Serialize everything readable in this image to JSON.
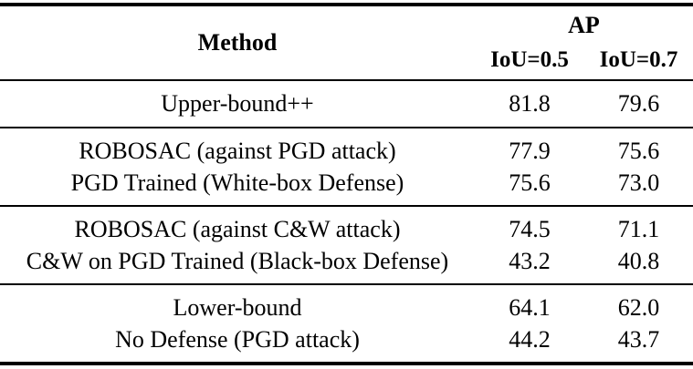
{
  "table": {
    "header": {
      "method_label": "Method",
      "ap_label": "AP",
      "iou_05_label": "IoU=0.5",
      "iou_07_label": "IoU=0.7"
    },
    "groups": [
      {
        "rows": [
          {
            "method": "Upper-bound++",
            "iou05": "81.8",
            "iou07": "79.6"
          }
        ]
      },
      {
        "rows": [
          {
            "method": "ROBOSAC (against PGD attack)",
            "iou05": "77.9",
            "iou07": "75.6"
          },
          {
            "method": "PGD Trained (White-box Defense)",
            "iou05": "75.6",
            "iou07": "73.0"
          }
        ]
      },
      {
        "rows": [
          {
            "method": "ROBOSAC (against C&W attack)",
            "iou05": "74.5",
            "iou07": "71.1"
          },
          {
            "method": "C&W on PGD Trained (Black-box Defense)",
            "iou05": "43.2",
            "iou07": "40.8"
          }
        ]
      },
      {
        "rows": [
          {
            "method": "Lower-bound",
            "iou05": "64.1",
            "iou07": "62.0"
          },
          {
            "method": "No Defense (PGD attack)",
            "iou05": "44.2",
            "iou07": "43.7"
          }
        ]
      }
    ],
    "colors": {
      "text": "#000000",
      "background": "#ffffff",
      "rule": "#000000"
    }
  }
}
